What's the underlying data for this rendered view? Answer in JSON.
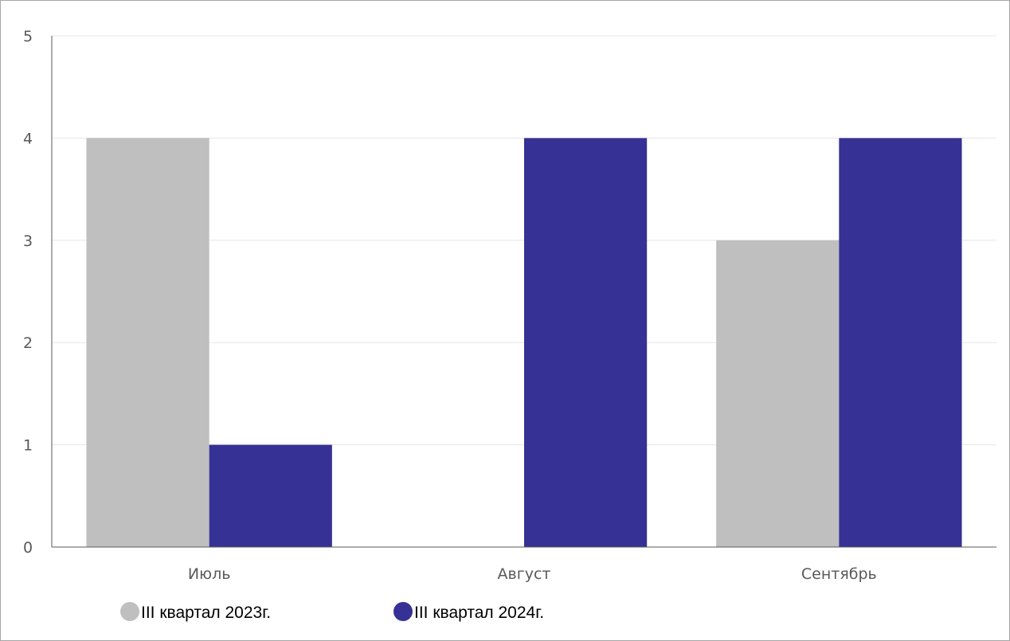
{
  "chart_data": {
    "type": "bar",
    "categories": [
      "Июль",
      "Август",
      "Сентябрь"
    ],
    "series": [
      {
        "name": "III квартал 2023г.",
        "values": [
          4,
          0,
          3
        ],
        "color": "#bfbfbf"
      },
      {
        "name": "III квартал 2024г.",
        "values": [
          1,
          4,
          4
        ],
        "color": "#363194"
      }
    ],
    "title": "",
    "xlabel": "",
    "ylabel": "",
    "ylim": [
      0,
      5
    ],
    "yticks": [
      0,
      1,
      2,
      3,
      4,
      5
    ],
    "grid": true,
    "legend_position": "bottom-left"
  }
}
